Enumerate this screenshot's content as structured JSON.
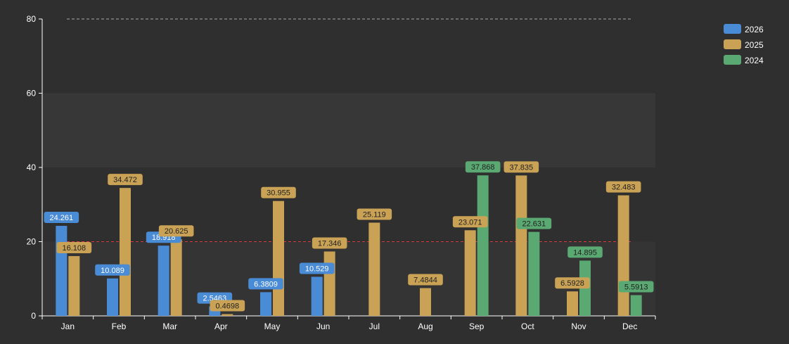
{
  "chart_data": {
    "type": "bar",
    "categories": [
      "Jan",
      "Feb",
      "Mar",
      "Apr",
      "May",
      "Jun",
      "Jul",
      "Aug",
      "Sep",
      "Oct",
      "Nov",
      "Dec"
    ],
    "series": [
      {
        "name": "2026",
        "color": "#4a8bd6",
        "values": [
          24.261,
          10.089,
          18.918,
          2.5463,
          6.3809,
          10.529,
          null,
          null,
          null,
          null,
          null,
          null
        ],
        "labels": [
          "24.261",
          "10.089",
          "18.918",
          "2.5463",
          "6.3809",
          "10.529",
          null,
          null,
          null,
          null,
          null,
          null
        ]
      },
      {
        "name": "2025",
        "color": "#c9a255",
        "values": [
          16.108,
          34.472,
          20.625,
          0.4698,
          30.955,
          17.346,
          25.119,
          7.4844,
          23.071,
          37.835,
          6.5928,
          32.483
        ],
        "labels": [
          "16.108",
          "34.472",
          "20.625",
          "0.4698",
          "30.955",
          "17.346",
          "25.119",
          "7.4844",
          "23.071",
          "37.835",
          "6.5928",
          "32.483"
        ]
      },
      {
        "name": "2024",
        "color": "#5aa872",
        "values": [
          null,
          null,
          null,
          null,
          null,
          null,
          null,
          null,
          37.868,
          22.631,
          14.895,
          5.5913
        ],
        "labels": [
          null,
          null,
          null,
          null,
          null,
          null,
          null,
          null,
          "37.868",
          "22.631",
          "14.895",
          "5.5913"
        ]
      }
    ],
    "y_axis": {
      "min": 0,
      "max": 80,
      "ticks": [
        "0",
        "20",
        "40",
        "60",
        "80"
      ]
    },
    "reference_lines": [
      {
        "value": 80,
        "color": "#aaaaaa"
      },
      {
        "value": 20,
        "color": "#d63a3a"
      }
    ],
    "shaded_bands": [
      {
        "from": 40,
        "to": 60,
        "color": "#373737"
      },
      {
        "from": 0,
        "to": 20,
        "color": "#343434"
      }
    ],
    "legend_position": "top-right",
    "title": "",
    "xlabel": "",
    "ylabel": ""
  }
}
